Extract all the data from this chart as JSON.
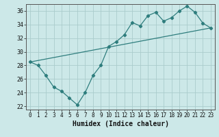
{
  "title": "",
  "xlabel": "Humidex (Indice chaleur)",
  "x_values": [
    0,
    1,
    2,
    3,
    4,
    5,
    6,
    7,
    8,
    9,
    10,
    11,
    12,
    13,
    14,
    15,
    16,
    17,
    18,
    19,
    20,
    21,
    22,
    23
  ],
  "line1_y": [
    28.5,
    28.0,
    26.5,
    24.8,
    24.2,
    23.2,
    22.2,
    24.0,
    26.5,
    28.0,
    30.8,
    31.5,
    32.5,
    34.3,
    33.8,
    35.3,
    35.8,
    34.5,
    35.0,
    36.0,
    36.7,
    35.8,
    34.2,
    33.5
  ],
  "line_color": "#2e7d7d",
  "bg_color": "#cce8e8",
  "grid_color": "#aacccc",
  "ylim": [
    21.5,
    37.0
  ],
  "xlim": [
    -0.5,
    23.5
  ],
  "yticks": [
    22,
    24,
    26,
    28,
    30,
    32,
    34,
    36
  ],
  "xticks": [
    0,
    1,
    2,
    3,
    4,
    5,
    6,
    7,
    8,
    9,
    10,
    11,
    12,
    13,
    14,
    15,
    16,
    17,
    18,
    19,
    20,
    21,
    22,
    23
  ],
  "tick_fontsize": 5.5,
  "xlabel_fontsize": 7.0
}
